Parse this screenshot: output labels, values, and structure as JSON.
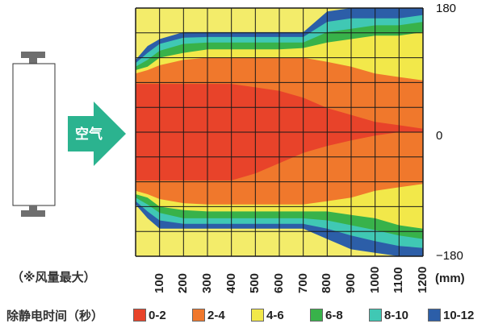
{
  "device": {
    "air_label": "空气",
    "arrow_color": "#2bb38f"
  },
  "note": "（※风量最大）",
  "chart_data": {
    "type": "heatmap",
    "title": "",
    "xlabel": "",
    "ylabel": "",
    "x_unit": "(mm)",
    "x_ticks": [
      "100",
      "200",
      "300",
      "400",
      "500",
      "600",
      "700",
      "800",
      "900",
      "1000",
      "1100",
      "1200"
    ],
    "y_ticks": [
      "180",
      "0",
      "−180"
    ],
    "xlim": [
      0,
      1200
    ],
    "ylim": [
      -180,
      180
    ],
    "legend": {
      "title": "除静电时间（秒）",
      "items": [
        {
          "label": "0-2",
          "color": "#e8432a"
        },
        {
          "label": "2-4",
          "color": "#f0782c"
        },
        {
          "label": "4-6",
          "color": "#f2e84a"
        },
        {
          "label": "6-8",
          "color": "#38b24a"
        },
        {
          "label": "8-10",
          "color": "#40c8b4"
        },
        {
          "label": "10-12",
          "color": "#2c5ea8"
        }
      ]
    },
    "bands": [
      {
        "class": "10-12",
        "color": "#2c5ea8",
        "top": [
          [
            0,
            105
          ],
          [
            50,
            125
          ],
          [
            100,
            135
          ],
          [
            200,
            145
          ],
          [
            300,
            145
          ],
          [
            400,
            145
          ],
          [
            500,
            145
          ],
          [
            600,
            145
          ],
          [
            700,
            145
          ],
          [
            800,
            175
          ],
          [
            900,
            180
          ],
          [
            1000,
            180
          ],
          [
            1100,
            180
          ],
          [
            1200,
            180
          ]
        ],
        "bottom": [
          [
            0,
            -105
          ],
          [
            50,
            -125
          ],
          [
            100,
            -140
          ],
          [
            200,
            -140
          ],
          [
            300,
            -140
          ],
          [
            400,
            -140
          ],
          [
            500,
            -140
          ],
          [
            600,
            -140
          ],
          [
            700,
            -140
          ],
          [
            800,
            -155
          ],
          [
            900,
            -170
          ],
          [
            1000,
            -175
          ],
          [
            1100,
            -180
          ],
          [
            1200,
            -180
          ]
        ]
      },
      {
        "class": "8-10",
        "color": "#40c8b4",
        "top": [
          [
            0,
            100
          ],
          [
            50,
            115
          ],
          [
            100,
            128
          ],
          [
            200,
            137
          ],
          [
            300,
            138
          ],
          [
            400,
            138
          ],
          [
            500,
            138
          ],
          [
            600,
            138
          ],
          [
            700,
            138
          ],
          [
            800,
            160
          ],
          [
            900,
            165
          ],
          [
            1000,
            165
          ],
          [
            1100,
            165
          ],
          [
            1200,
            170
          ]
        ],
        "bottom": [
          [
            0,
            -100
          ],
          [
            50,
            -115
          ],
          [
            100,
            -128
          ],
          [
            200,
            -133
          ],
          [
            300,
            -133
          ],
          [
            400,
            -133
          ],
          [
            500,
            -133
          ],
          [
            600,
            -133
          ],
          [
            700,
            -133
          ],
          [
            800,
            -140
          ],
          [
            900,
            -150
          ],
          [
            1000,
            -158
          ],
          [
            1100,
            -165
          ],
          [
            1200,
            -168
          ]
        ]
      },
      {
        "class": "6-8",
        "color": "#38b24a",
        "top": [
          [
            0,
            95
          ],
          [
            50,
            105
          ],
          [
            100,
            118
          ],
          [
            200,
            128
          ],
          [
            300,
            130
          ],
          [
            400,
            130
          ],
          [
            500,
            130
          ],
          [
            600,
            130
          ],
          [
            700,
            130
          ],
          [
            800,
            145
          ],
          [
            900,
            150
          ],
          [
            1000,
            155
          ],
          [
            1100,
            155
          ],
          [
            1200,
            160
          ]
        ],
        "bottom": [
          [
            0,
            -95
          ],
          [
            50,
            -105
          ],
          [
            100,
            -117
          ],
          [
            200,
            -125
          ],
          [
            300,
            -125
          ],
          [
            400,
            -125
          ],
          [
            500,
            -125
          ],
          [
            600,
            -125
          ],
          [
            700,
            -125
          ],
          [
            800,
            -128
          ],
          [
            900,
            -135
          ],
          [
            1000,
            -142
          ],
          [
            1100,
            -150
          ],
          [
            1200,
            -155
          ]
        ]
      },
      {
        "class": "4-6",
        "color": "#f2e84a",
        "top": [
          [
            0,
            90
          ],
          [
            50,
            95
          ],
          [
            100,
            108
          ],
          [
            200,
            115
          ],
          [
            300,
            120
          ],
          [
            400,
            120
          ],
          [
            500,
            120
          ],
          [
            600,
            120
          ],
          [
            700,
            122
          ],
          [
            800,
            130
          ],
          [
            900,
            135
          ],
          [
            1000,
            140
          ],
          [
            1100,
            140
          ],
          [
            1200,
            145
          ]
        ],
        "bottom": [
          [
            0,
            -90
          ],
          [
            50,
            -95
          ],
          [
            100,
            -108
          ],
          [
            200,
            -113
          ],
          [
            300,
            -115
          ],
          [
            400,
            -115
          ],
          [
            500,
            -115
          ],
          [
            600,
            -115
          ],
          [
            700,
            -115
          ],
          [
            800,
            -115
          ],
          [
            900,
            -120
          ],
          [
            1000,
            -125
          ],
          [
            1100,
            -135
          ],
          [
            1200,
            -140
          ]
        ]
      },
      {
        "class": "2-4",
        "color": "#f0782c",
        "top": [
          [
            0,
            85
          ],
          [
            50,
            90
          ],
          [
            100,
            97
          ],
          [
            200,
            105
          ],
          [
            300,
            108
          ],
          [
            400,
            108
          ],
          [
            500,
            108
          ],
          [
            600,
            108
          ],
          [
            700,
            108
          ],
          [
            800,
            102
          ],
          [
            900,
            95
          ],
          [
            1000,
            85
          ],
          [
            1100,
            80
          ],
          [
            1200,
            75
          ]
        ],
        "bottom": [
          [
            0,
            -85
          ],
          [
            50,
            -90
          ],
          [
            100,
            -97
          ],
          [
            200,
            -103
          ],
          [
            300,
            -105
          ],
          [
            400,
            -105
          ],
          [
            500,
            -105
          ],
          [
            600,
            -105
          ],
          [
            700,
            -105
          ],
          [
            800,
            -100
          ],
          [
            900,
            -95
          ],
          [
            1000,
            -85
          ],
          [
            1100,
            -80
          ],
          [
            1200,
            -75
          ]
        ]
      },
      {
        "class": "0-2",
        "color": "#e8432a",
        "top": [
          [
            0,
            70
          ],
          [
            100,
            70
          ],
          [
            200,
            70
          ],
          [
            300,
            70
          ],
          [
            400,
            70
          ],
          [
            500,
            65
          ],
          [
            600,
            60
          ],
          [
            700,
            50
          ],
          [
            800,
            35
          ],
          [
            900,
            25
          ],
          [
            1000,
            15
          ],
          [
            1100,
            10
          ],
          [
            1200,
            5
          ]
        ],
        "bottom": [
          [
            0,
            -70
          ],
          [
            100,
            -70
          ],
          [
            200,
            -70
          ],
          [
            300,
            -70
          ],
          [
            400,
            -70
          ],
          [
            500,
            -60
          ],
          [
            600,
            -45
          ],
          [
            700,
            -30
          ],
          [
            800,
            -20
          ],
          [
            900,
            -12
          ],
          [
            1000,
            -5
          ],
          [
            1100,
            0
          ],
          [
            1200,
            0
          ]
        ]
      }
    ],
    "grid": true
  }
}
